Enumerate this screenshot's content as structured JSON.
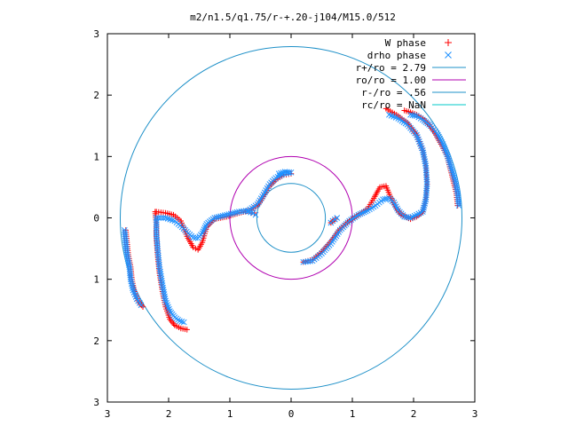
{
  "chart_data": {
    "type": "scatter",
    "title": "m2/n1.5/q1.75/r-+.20-j104/M15.0/512",
    "xlabel": "",
    "ylabel": "",
    "xlim": [
      -3,
      3
    ],
    "ylim": [
      -3,
      3
    ],
    "x_tick_labels": [
      "3",
      "2",
      "1",
      "0",
      "1",
      "2",
      "3"
    ],
    "y_tick_labels": [
      "3",
      "2",
      "1",
      "0",
      "1",
      "2",
      "3"
    ],
    "grid": false,
    "legend_position": "top-right",
    "legend": [
      {
        "label": "W phase",
        "marker": "+",
        "color": "#ff0000"
      },
      {
        "label": "drho phase",
        "marker": "x",
        "color": "#1e90ff"
      },
      {
        "label": "r+/ro = 2.79",
        "marker": "line",
        "color": "#1e90c8"
      },
      {
        "label": "ro/ro = 1.00",
        "marker": "line",
        "color": "#b000b0"
      },
      {
        "label": "r-/ro = .56",
        "marker": "line",
        "color": "#1e90c8"
      },
      {
        "label": "rc/ro = NaN",
        "marker": "line",
        "color": "#00c8c8"
      }
    ],
    "circles": [
      {
        "name": "r+/ro = 2.79",
        "r": 2.79,
        "color": "#1e90c8"
      },
      {
        "name": "ro/ro = 1.00",
        "r": 1.0,
        "color": "#b000b0"
      },
      {
        "name": "r-/ro = .56",
        "r": 0.56,
        "color": "#1e90c8"
      }
    ],
    "series": [
      {
        "name": "W phase",
        "color": "#ff0000",
        "marker": "+",
        "segments": [
          [
            [
              -2.7,
              -0.2
            ],
            [
              -2.68,
              -0.4
            ],
            [
              -2.66,
              -0.6
            ],
            [
              -2.62,
              -0.8
            ],
            [
              -2.6,
              -1.0
            ],
            [
              -2.56,
              -1.2
            ],
            [
              -2.5,
              -1.35
            ],
            [
              -2.42,
              -1.45
            ]
          ],
          [
            [
              -2.22,
              0.1
            ],
            [
              -2.2,
              -0.1
            ],
            [
              -2.2,
              -0.3
            ],
            [
              -2.18,
              -0.6
            ],
            [
              -2.15,
              -0.9
            ],
            [
              -2.1,
              -1.2
            ],
            [
              -2.05,
              -1.45
            ],
            [
              -1.98,
              -1.65
            ],
            [
              -1.9,
              -1.75
            ],
            [
              -1.8,
              -1.8
            ],
            [
              -1.7,
              -1.82
            ]
          ],
          [
            [
              -2.2,
              0.1
            ],
            [
              -2.05,
              0.08
            ],
            [
              -1.92,
              0.05
            ],
            [
              -1.8,
              -0.05
            ],
            [
              -1.7,
              -0.3
            ],
            [
              -1.6,
              -0.48
            ],
            [
              -1.52,
              -0.52
            ],
            [
              -1.45,
              -0.4
            ],
            [
              -1.38,
              -0.15
            ],
            [
              -1.25,
              -0.02
            ],
            [
              -1.05,
              0.02
            ],
            [
              -0.85,
              0.08
            ],
            [
              -0.68,
              0.12
            ],
            [
              -0.55,
              0.2
            ],
            [
              -0.45,
              0.35
            ],
            [
              -0.35,
              0.52
            ],
            [
              -0.25,
              0.62
            ],
            [
              -0.12,
              0.7
            ],
            [
              0.0,
              0.72
            ]
          ],
          [
            [
              -0.65,
              0.08
            ],
            [
              -0.6,
              0.08
            ]
          ],
          [
            [
              0.72,
              -0.02
            ],
            [
              0.65,
              -0.08
            ]
          ],
          [
            [
              0.2,
              -0.72
            ],
            [
              0.35,
              -0.68
            ],
            [
              0.5,
              -0.55
            ],
            [
              0.65,
              -0.38
            ],
            [
              0.8,
              -0.18
            ],
            [
              0.95,
              -0.05
            ],
            [
              1.1,
              0.05
            ],
            [
              1.25,
              0.15
            ],
            [
              1.35,
              0.32
            ],
            [
              1.45,
              0.5
            ],
            [
              1.55,
              0.52
            ],
            [
              1.62,
              0.35
            ],
            [
              1.7,
              0.18
            ],
            [
              1.8,
              0.05
            ],
            [
              1.95,
              -0.02
            ],
            [
              2.05,
              0.02
            ],
            [
              2.15,
              0.1
            ],
            [
              2.2,
              0.3
            ],
            [
              2.22,
              0.55
            ],
            [
              2.2,
              0.85
            ],
            [
              2.15,
              1.1
            ],
            [
              2.05,
              1.35
            ],
            [
              1.9,
              1.55
            ],
            [
              1.72,
              1.68
            ],
            [
              1.55,
              1.78
            ]
          ],
          [
            [
              2.72,
              0.2
            ],
            [
              2.7,
              0.4
            ],
            [
              2.65,
              0.6
            ],
            [
              2.6,
              0.8
            ],
            [
              2.55,
              1.0
            ],
            [
              2.45,
              1.2
            ],
            [
              2.35,
              1.38
            ],
            [
              2.25,
              1.52
            ],
            [
              2.15,
              1.62
            ],
            [
              2.05,
              1.68
            ],
            [
              1.95,
              1.72
            ],
            [
              1.85,
              1.75
            ]
          ]
        ]
      },
      {
        "name": "drho phase",
        "color": "#1e90ff",
        "marker": "x",
        "segments": [
          [
            [
              -2.72,
              -0.2
            ],
            [
              -2.7,
              -0.4
            ],
            [
              -2.68,
              -0.6
            ],
            [
              -2.64,
              -0.8
            ],
            [
              -2.62,
              -1.0
            ],
            [
              -2.58,
              -1.18
            ],
            [
              -2.52,
              -1.32
            ],
            [
              -2.45,
              -1.42
            ]
          ],
          [
            [
              -2.2,
              0.0
            ],
            [
              -2.2,
              -0.25
            ],
            [
              -2.18,
              -0.5
            ],
            [
              -2.15,
              -0.8
            ],
            [
              -2.1,
              -1.1
            ],
            [
              -2.05,
              -1.35
            ],
            [
              -1.98,
              -1.52
            ],
            [
              -1.9,
              -1.62
            ],
            [
              -1.82,
              -1.68
            ],
            [
              -1.75,
              -1.7
            ]
          ],
          [
            [
              -2.2,
              0.0
            ],
            [
              -2.05,
              0.0
            ],
            [
              -1.9,
              -0.05
            ],
            [
              -1.78,
              -0.15
            ],
            [
              -1.68,
              -0.25
            ],
            [
              -1.6,
              -0.32
            ],
            [
              -1.52,
              -0.33
            ],
            [
              -1.45,
              -0.25
            ],
            [
              -1.38,
              -0.1
            ],
            [
              -1.25,
              0.0
            ],
            [
              -1.05,
              0.05
            ],
            [
              -0.85,
              0.1
            ],
            [
              -0.7,
              0.12
            ],
            [
              -0.55,
              0.22
            ],
            [
              -0.45,
              0.38
            ],
            [
              -0.35,
              0.55
            ],
            [
              -0.25,
              0.65
            ],
            [
              -0.12,
              0.72
            ],
            [
              0.0,
              0.74
            ],
            [
              -0.1,
              0.75
            ],
            [
              -0.2,
              0.72
            ]
          ],
          [
            [
              -0.7,
              0.1
            ],
            [
              -0.62,
              0.08
            ],
            [
              -0.58,
              0.05
            ]
          ],
          [
            [
              0.75,
              0.0
            ],
            [
              0.68,
              -0.05
            ],
            [
              0.65,
              -0.08
            ]
          ],
          [
            [
              0.2,
              -0.72
            ],
            [
              0.35,
              -0.7
            ],
            [
              0.5,
              -0.58
            ],
            [
              0.65,
              -0.42
            ],
            [
              0.8,
              -0.2
            ],
            [
              0.95,
              -0.05
            ],
            [
              1.1,
              0.05
            ],
            [
              1.25,
              0.12
            ],
            [
              1.38,
              0.2
            ],
            [
              1.5,
              0.3
            ],
            [
              1.6,
              0.32
            ],
            [
              1.68,
              0.25
            ],
            [
              1.75,
              0.12
            ],
            [
              1.85,
              0.02
            ],
            [
              1.95,
              0.0
            ],
            [
              2.05,
              0.05
            ],
            [
              2.15,
              0.1
            ],
            [
              2.2,
              0.3
            ],
            [
              2.22,
              0.55
            ],
            [
              2.2,
              0.85
            ],
            [
              2.15,
              1.1
            ],
            [
              2.05,
              1.35
            ],
            [
              1.9,
              1.52
            ],
            [
              1.75,
              1.62
            ],
            [
              1.6,
              1.68
            ]
          ],
          [
            [
              2.74,
              0.2
            ],
            [
              2.72,
              0.4
            ],
            [
              2.68,
              0.6
            ],
            [
              2.62,
              0.8
            ],
            [
              2.56,
              1.0
            ],
            [
              2.48,
              1.2
            ],
            [
              2.38,
              1.38
            ],
            [
              2.28,
              1.5
            ],
            [
              2.15,
              1.6
            ],
            [
              2.05,
              1.66
            ],
            [
              1.95,
              1.68
            ]
          ]
        ]
      }
    ]
  }
}
